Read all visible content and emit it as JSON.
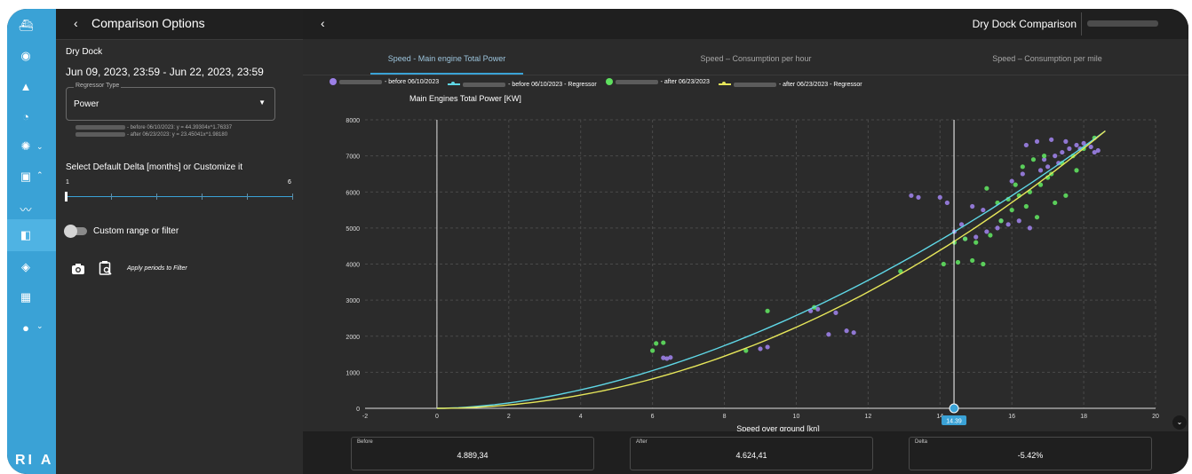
{
  "sidebar_rail": {
    "items": [
      {
        "name": "ship-icon",
        "glyph": "⛴"
      },
      {
        "name": "globe-icon",
        "glyph": "◉"
      },
      {
        "name": "bell-icon",
        "glyph": "▲"
      },
      {
        "name": "gauge-icon",
        "glyph": "◔"
      },
      {
        "name": "fuel-icon",
        "glyph": "✺"
      },
      {
        "name": "report-icon",
        "glyph": "▣"
      },
      {
        "name": "chart-line-icon",
        "glyph": "〰"
      },
      {
        "name": "compare-icon",
        "glyph": "◧"
      },
      {
        "name": "target-icon",
        "glyph": "◈"
      },
      {
        "name": "calendar-icon",
        "glyph": "▦"
      },
      {
        "name": "pin-icon",
        "glyph": "●"
      }
    ],
    "brand": "RI A"
  },
  "panel": {
    "title": "Comparison Options",
    "section_label": "Dry Dock",
    "date_range": "Jun 09, 2023, 23:59 - Jun 22, 2023, 23:59",
    "regressor_label": "Regressor Type",
    "regressor_value": "Power",
    "eq_before": "- before 06/10/2023:  y = 44.39304x^1.76337",
    "eq_after": "- after 06/23/2023:  y = 23.45041x^1.98180",
    "delta_label": "Select Default Delta [months] or Customize it",
    "slider_min": "1",
    "slider_max": "6",
    "slider_value": 1,
    "toggle_label": "Custom range or filter",
    "apply_label": "Apply periods to Filter"
  },
  "header": {
    "title": "Dry Dock Comparison"
  },
  "tabs": [
    {
      "label": "Speed - Main engine Total Power",
      "active": true
    },
    {
      "label": "Speed – Consumption per hour",
      "active": false
    },
    {
      "label": "Speed – Consumption per mile",
      "active": false
    }
  ],
  "legend": [
    {
      "text": "- before 06/10/2023",
      "color": "#9b7fe6",
      "kind": "dot"
    },
    {
      "text": "- before 06/10/2023 - Regressor",
      "color": "#5fd7e6",
      "kind": "line"
    },
    {
      "text": "- after 06/23/2023",
      "color": "#5fe05f",
      "kind": "dot"
    },
    {
      "text": "- after 06/23/2023 - Regressor",
      "color": "#e6e65a",
      "kind": "line"
    }
  ],
  "chart_data": {
    "type": "scatter",
    "title": "Main Engines Total Power [KW]",
    "xlabel": "Speed over ground [kn]",
    "ylabel": "",
    "xlim": [
      -2,
      20
    ],
    "ylim": [
      0,
      8000
    ],
    "xticks": [
      "-2",
      "0",
      "2",
      "4",
      "6",
      "8",
      "10",
      "12",
      "14",
      "16",
      "18",
      "20"
    ],
    "yticks": [
      "0",
      "1000",
      "2000",
      "3000",
      "4000",
      "5000",
      "6000",
      "7000",
      "8000"
    ],
    "grid": true,
    "crosshair": {
      "x": 14.39,
      "label": "14.39"
    },
    "series": [
      {
        "name": "- before 06/10/2023",
        "color": "#9b7fe6",
        "kind": "points",
        "points": [
          [
            6.3,
            1400
          ],
          [
            6.4,
            1380
          ],
          [
            6.5,
            1410
          ],
          [
            9.0,
            1650
          ],
          [
            9.2,
            1700
          ],
          [
            10.4,
            2700
          ],
          [
            10.6,
            2750
          ],
          [
            10.9,
            2050
          ],
          [
            11.1,
            2650
          ],
          [
            11.4,
            2150
          ],
          [
            11.6,
            2100
          ],
          [
            13.2,
            5900
          ],
          [
            13.4,
            5850
          ],
          [
            14.0,
            5850
          ],
          [
            14.2,
            5700
          ],
          [
            14.4,
            4900
          ],
          [
            14.7,
            4700
          ],
          [
            15.0,
            4750
          ],
          [
            15.3,
            4900
          ],
          [
            15.6,
            5000
          ],
          [
            15.9,
            5100
          ],
          [
            16.2,
            5200
          ],
          [
            16.5,
            5000
          ],
          [
            16.8,
            6600
          ],
          [
            17.0,
            6700
          ],
          [
            17.2,
            7000
          ],
          [
            17.4,
            7100
          ],
          [
            17.6,
            7200
          ],
          [
            17.8,
            7300
          ],
          [
            18.0,
            7350
          ],
          [
            18.2,
            7250
          ],
          [
            18.4,
            7150
          ],
          [
            16.4,
            7300
          ],
          [
            16.7,
            7400
          ],
          [
            17.1,
            7450
          ],
          [
            17.5,
            7400
          ],
          [
            17.9,
            7200
          ],
          [
            18.3,
            7100
          ],
          [
            16.0,
            6300
          ],
          [
            16.3,
            6500
          ],
          [
            15.7,
            5200
          ],
          [
            15.2,
            5500
          ],
          [
            14.9,
            5600
          ],
          [
            14.6,
            5100
          ],
          [
            16.9,
            6900
          ],
          [
            17.3,
            6800
          ]
        ]
      },
      {
        "name": "- after 06/23/2023",
        "color": "#5fe05f",
        "kind": "points",
        "points": [
          [
            6.1,
            1800
          ],
          [
            6.3,
            1820
          ],
          [
            6.0,
            1600
          ],
          [
            8.6,
            1600
          ],
          [
            9.2,
            2700
          ],
          [
            10.5,
            2800
          ],
          [
            12.9,
            3800
          ],
          [
            14.1,
            4000
          ],
          [
            14.5,
            4050
          ],
          [
            14.9,
            4100
          ],
          [
            15.2,
            4000
          ],
          [
            15.0,
            4600
          ],
          [
            15.4,
            4800
          ],
          [
            15.7,
            5200
          ],
          [
            16.0,
            5500
          ],
          [
            16.2,
            5900
          ],
          [
            16.5,
            6000
          ],
          [
            16.8,
            6200
          ],
          [
            17.1,
            6500
          ],
          [
            17.4,
            6800
          ],
          [
            17.7,
            7000
          ],
          [
            18.0,
            7200
          ],
          [
            18.3,
            7500
          ],
          [
            16.3,
            6700
          ],
          [
            16.6,
            6900
          ],
          [
            16.9,
            7000
          ],
          [
            15.6,
            5700
          ],
          [
            15.9,
            5800
          ],
          [
            14.4,
            4600
          ],
          [
            14.7,
            4700
          ],
          [
            17.2,
            5700
          ],
          [
            17.5,
            5900
          ],
          [
            15.3,
            6100
          ],
          [
            16.1,
            6200
          ],
          [
            16.7,
            5300
          ],
          [
            17.0,
            6400
          ],
          [
            16.4,
            5600
          ],
          [
            17.8,
            6600
          ]
        ]
      },
      {
        "name": "- before 06/10/2023 - Regressor",
        "color": "#5fd7e6",
        "kind": "curve",
        "coef": 44.39304,
        "exp": 1.76337
      },
      {
        "name": "- after 06/23/2023 - Regressor",
        "color": "#e6e65a",
        "kind": "curve",
        "coef": 23.45041,
        "exp": 1.9818
      }
    ]
  },
  "stats": [
    {
      "label": "Before",
      "value": "4.889,34"
    },
    {
      "label": "After",
      "value": "4.624,41"
    },
    {
      "label": "Delta",
      "value": "-5.42%"
    }
  ]
}
